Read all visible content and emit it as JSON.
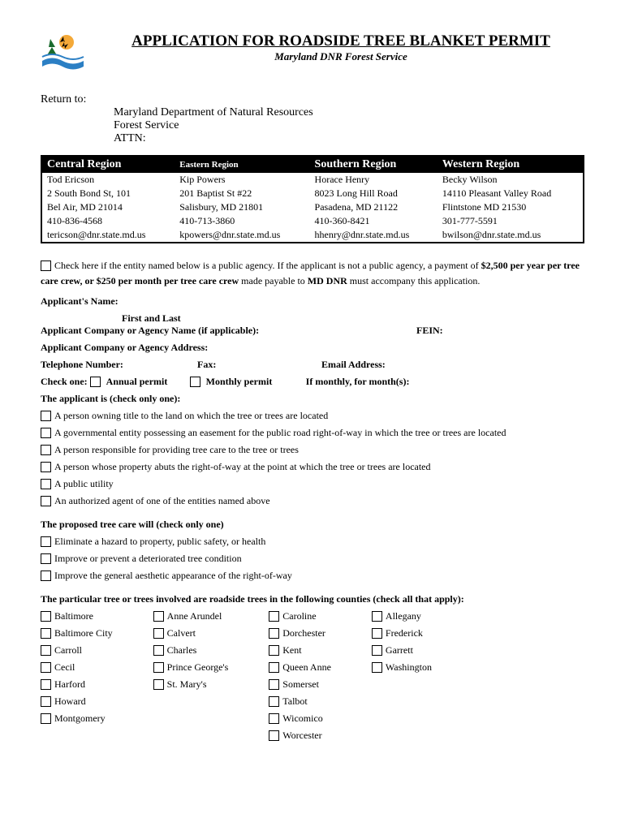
{
  "header": {
    "title": "APPLICATION FOR ROADSIDE TREE BLANKET PERMIT",
    "subtitle": "Maryland DNR Forest Service"
  },
  "return": {
    "label": "Return to:",
    "line1": "Maryland Department of Natural Resources",
    "line2": "Forest Service",
    "line3": "ATTN:"
  },
  "regions": [
    {
      "heading": "Central Region",
      "name": "Tod Ericson",
      "addr1": "2 South Bond St, 101",
      "addr2": "Bel Air, MD  21014",
      "phone": "410-836-4568",
      "email": "tericson@dnr.state.md.us"
    },
    {
      "heading": "Eastern Region",
      "name": "Kip Powers",
      "addr1": "201 Baptist St #22",
      "addr2": "Salisbury, MD 21801",
      "phone": "410-713-3860",
      "email": "kpowers@dnr.state.md.us"
    },
    {
      "heading": "Southern Region",
      "name": "Horace Henry",
      "addr1": "8023 Long Hill Road",
      "addr2": "Pasadena, MD 21122",
      "phone": "410-360-8421",
      "email": "hhenry@dnr.state.md.us"
    },
    {
      "heading": "Western Region",
      "name": "Becky Wilson",
      "addr1": "14110 Pleasant Valley Road",
      "addr2": "Flintstone MD  21530",
      "phone": "301-777-5591",
      "email": "bwilson@dnr.state.md.us"
    }
  ],
  "public_agency": {
    "text1": "Check here if the entity named below is a public agency.  If the applicant is not a public agency, a payment of ",
    "bold1": "$2,500 per year per tree care crew, or $250 per month per tree care crew",
    "text2": " made payable to ",
    "bold2": "MD DNR",
    "text3": " must accompany this application."
  },
  "fields": {
    "applicant_name": "Applicant's Name:",
    "first_last": "First and Last",
    "company": "Applicant Company or Agency Name (if applicable):",
    "fein": "FEIN:",
    "address": "Applicant Company or Agency Address:",
    "telephone": "Telephone Number:",
    "fax": "Fax:",
    "email": "Email Address:",
    "check_one": "Check one:",
    "annual": "Annual permit",
    "monthly": "Monthly permit",
    "if_monthly": "If monthly, for month(s):"
  },
  "applicant_is": {
    "heading": "The applicant is (check only one):",
    "items": [
      "A person owning title to the land on which the tree or trees are located",
      "A governmental entity possessing an easement for the public road right-of-way in which the tree or trees are located",
      "A person responsible for providing tree care to the tree or trees",
      "A person whose property abuts the right-of-way at the point at which the tree or trees are located",
      "A public utility",
      "An authorized agent of one of the entities named above"
    ]
  },
  "tree_care": {
    "heading": "The proposed tree care will (check only one)",
    "items": [
      "Eliminate a hazard to property, public safety, or health",
      "Improve or prevent a deteriorated tree condition",
      "Improve the general aesthetic appearance of the right-of-way"
    ]
  },
  "counties": {
    "heading": "The particular tree or trees involved are roadside trees in the following counties (check all that apply):",
    "cols": [
      [
        "Baltimore",
        "Baltimore City",
        "Carroll",
        "Cecil",
        "Harford",
        "Howard",
        "Montgomery"
      ],
      [
        "Anne Arundel",
        "Calvert",
        "Charles",
        "Prince George's",
        "St. Mary's"
      ],
      [
        "Caroline",
        "Dorchester",
        "Kent",
        "Queen Anne",
        "Somerset",
        "Talbot",
        "Wicomico",
        "Worcester"
      ],
      [
        "Allegany",
        "Frederick",
        "Garrett",
        "Washington"
      ]
    ]
  }
}
